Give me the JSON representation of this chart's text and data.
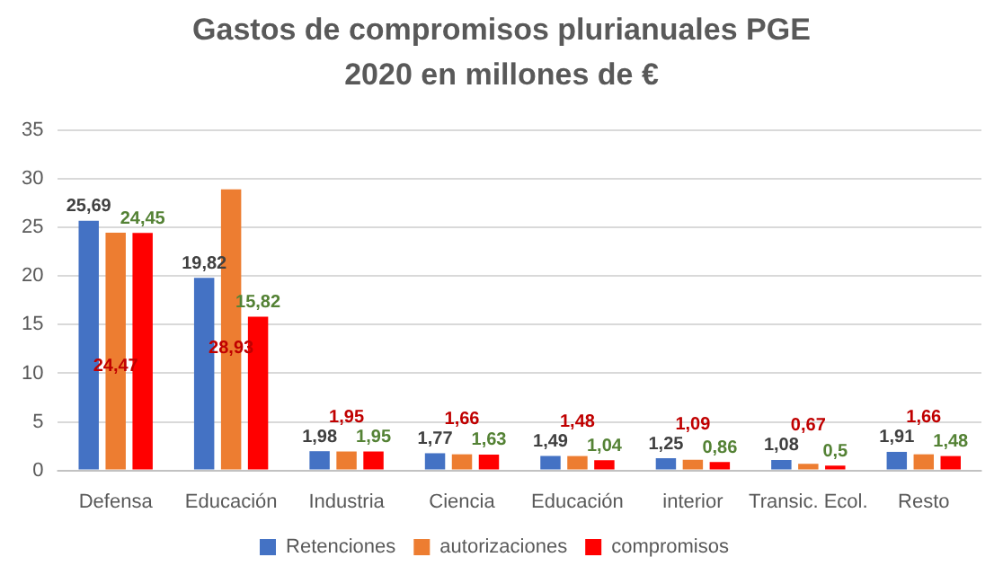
{
  "chart_data": {
    "type": "bar",
    "title": "Gastos de compromisos plurianuales PGE 2020 en millones de €",
    "categories": [
      "Defensa",
      "Educación",
      "Industria",
      "Ciencia",
      "Educación",
      "interior",
      "Transic. Ecol.",
      "Resto"
    ],
    "series": [
      {
        "name": "Retenciones",
        "color": "#4472c4",
        "values": [
          25.69,
          19.82,
          1.98,
          1.77,
          1.49,
          1.25,
          1.08,
          1.91
        ],
        "value_labels": [
          "25,69",
          "19,82",
          "1,98",
          "1,77",
          "1,49",
          "1,25",
          "1,08",
          "1,91"
        ]
      },
      {
        "name": "autorizaciones",
        "color": "#ed7d31",
        "values": [
          24.47,
          28.93,
          1.95,
          1.66,
          1.48,
          1.09,
          0.67,
          1.66
        ],
        "value_labels": [
          "24,47",
          "28,93",
          "1,95",
          "1,66",
          "1,48",
          "1,09",
          "0,67",
          "1,66"
        ]
      },
      {
        "name": "compromisos",
        "color": "#ff0000",
        "values": [
          24.45,
          15.82,
          1.95,
          1.63,
          1.04,
          0.86,
          0.5,
          1.48
        ],
        "value_labels": [
          "24,45",
          "15,82",
          "1,95",
          "1,63",
          "1,04",
          "0,86",
          "0,5",
          "1,48"
        ]
      }
    ],
    "ylim": [
      0,
      35
    ],
    "yticks": [
      0,
      5,
      10,
      15,
      20,
      25,
      30,
      35
    ],
    "grid": "y",
    "legend": "bottom"
  }
}
